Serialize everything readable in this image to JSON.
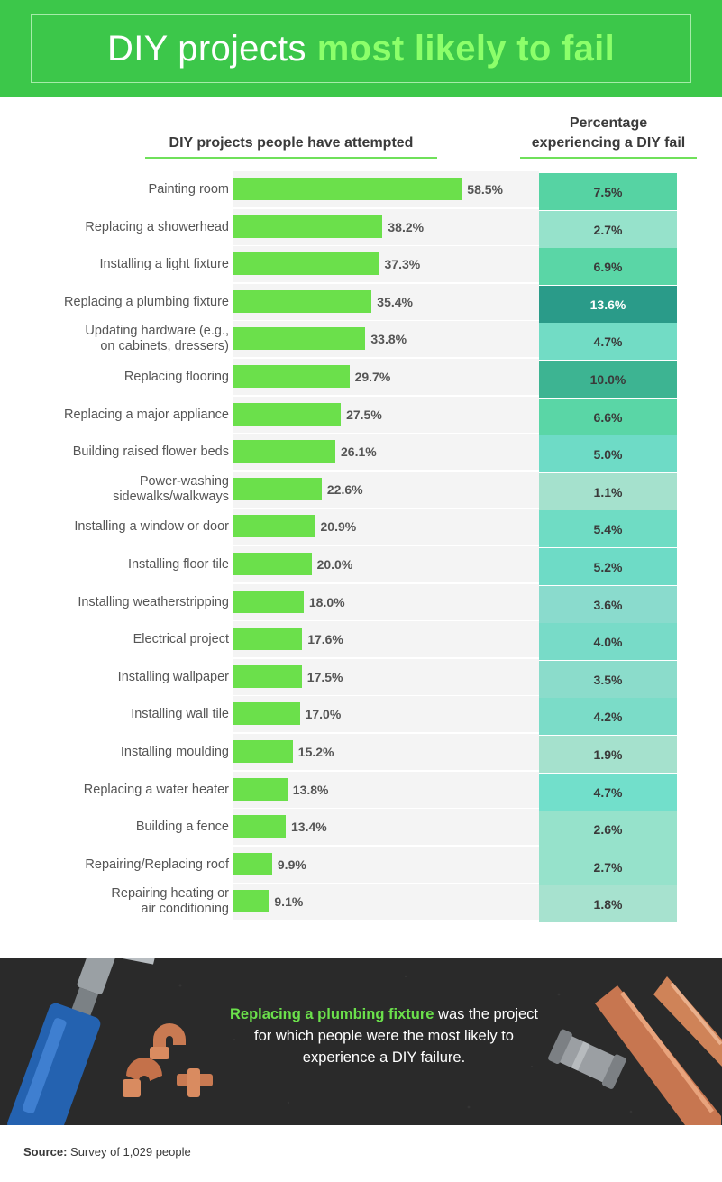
{
  "header": {
    "title_plain": "DIY projects",
    "title_accent": "most likely to fail"
  },
  "columns": {
    "left_header": "DIY projects people have attempted",
    "right_header_line1": "Percentage",
    "right_header_line2": "experiencing a DIY fail"
  },
  "colors": {
    "header_green": "#3cc74a",
    "bar_green": "#6be04b",
    "highlight_green": "#6be04b",
    "banner_dark": "#2a2a2a"
  },
  "chart_data": {
    "type": "bar",
    "title": "DIY projects most likely to fail",
    "categories": [
      [
        "Painting room"
      ],
      [
        "Replacing a showerhead"
      ],
      [
        "Installing a light fixture"
      ],
      [
        "Replacing a plumbing fixture"
      ],
      [
        "Updating hardware (e.g.,",
        "on cabinets, dressers)"
      ],
      [
        "Replacing flooring"
      ],
      [
        "Replacing a major appliance"
      ],
      [
        "Building raised flower beds"
      ],
      [
        "Power-washing",
        "sidewalks/walkways"
      ],
      [
        "Installing a window or door"
      ],
      [
        "Installing floor tile"
      ],
      [
        "Installing weatherstripping"
      ],
      [
        "Electrical project"
      ],
      [
        "Installing wallpaper"
      ],
      [
        "Installing wall tile"
      ],
      [
        "Installing moulding"
      ],
      [
        "Replacing a water heater"
      ],
      [
        "Building a fence"
      ],
      [
        "Repairing/Replacing roof"
      ],
      [
        "Repairing heating or",
        "air conditioning"
      ]
    ],
    "series": [
      {
        "name": "DIY projects people have attempted",
        "values": [
          58.5,
          38.2,
          37.3,
          35.4,
          33.8,
          29.7,
          27.5,
          26.1,
          22.6,
          20.9,
          20.0,
          18.0,
          17.6,
          17.5,
          17.0,
          15.2,
          13.8,
          13.4,
          9.9,
          9.1
        ],
        "labels": [
          "58.5%",
          "38.2%",
          "37.3%",
          "35.4%",
          "33.8%",
          "29.7%",
          "27.5%",
          "26.1%",
          "22.6%",
          "20.9%",
          "20.0%",
          "18.0%",
          "17.6%",
          "17.5%",
          "17.0%",
          "15.2%",
          "13.8%",
          "13.4%",
          "9.9%",
          "9.1%"
        ]
      },
      {
        "name": "Percentage experiencing a DIY fail",
        "values": [
          7.5,
          2.7,
          6.9,
          13.6,
          4.7,
          10.0,
          6.6,
          5.0,
          1.1,
          5.4,
          5.2,
          3.6,
          4.0,
          3.5,
          4.2,
          1.9,
          4.7,
          2.6,
          2.7,
          1.8
        ],
        "labels": [
          "7.5%",
          "2.7%",
          "6.9%",
          "13.6%",
          "4.7%",
          "10.0%",
          "6.6%",
          "5.0%",
          "1.1%",
          "5.4%",
          "5.2%",
          "3.6%",
          "4.0%",
          "3.5%",
          "4.2%",
          "1.9%",
          "4.7%",
          "2.6%",
          "2.7%",
          "1.8%"
        ],
        "cell_colors": [
          "#56d3a3",
          "#96e2cb",
          "#5ad6a6",
          "#2a9b89",
          "#72dcc5",
          "#3db492",
          "#5ad6a6",
          "#6edbc6",
          "#a5e1cd",
          "#6fdcc4",
          "#6edbc6",
          "#8adbcd",
          "#78dbc8",
          "#8bdccb",
          "#7bdcc8",
          "#a5e1cd",
          "#72dfcb",
          "#96e2cb",
          "#96e2cb",
          "#a7e2cf"
        ]
      }
    ],
    "xlim": [
      0,
      60
    ],
    "grid": false,
    "legend": "none"
  },
  "callout": {
    "highlight": "Replacing a plumbing fixture",
    "rest": "was the project for which people were the most likely to experience a DIY failure."
  },
  "source": {
    "label": "Source:",
    "text": "Survey of 1,029 people"
  }
}
